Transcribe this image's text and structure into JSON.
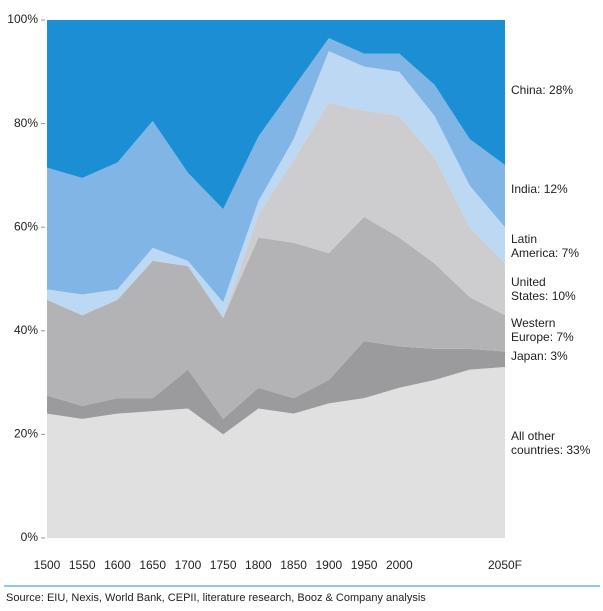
{
  "chart_data": {
    "type": "stacked-area",
    "categories": [
      "1500",
      "1550",
      "1600",
      "1650",
      "1700",
      "1750",
      "1800",
      "1850",
      "1900",
      "1950",
      "2000",
      null,
      null,
      "2050F"
    ],
    "series": [
      {
        "name": "All other countries: 33%",
        "color": "#e0e0e1",
        "values": [
          24,
          23,
          24,
          24.5,
          25,
          20,
          25,
          24,
          26,
          27,
          29,
          30.5,
          32.5,
          33
        ]
      },
      {
        "name": "Japan: 3%",
        "color": "#9b9b9d",
        "values": [
          3.5,
          2.5,
          3,
          2.5,
          7.5,
          3,
          4,
          3,
          4.5,
          11,
          8,
          6,
          4,
          3
        ]
      },
      {
        "name": "Western Europe: 7%",
        "color": "#b3b3b5",
        "values": [
          18.5,
          17.5,
          19,
          26.5,
          20,
          19.5,
          29,
          30,
          24.5,
          24,
          21,
          16.5,
          10,
          7
        ]
      },
      {
        "name": "United States: 10%",
        "color": "#cdcdcf",
        "values": [
          0,
          0,
          0,
          0,
          0,
          0,
          4.5,
          16,
          29,
          20.5,
          23.5,
          20.5,
          13.5,
          10
        ]
      },
      {
        "name": "Latin America: 7%",
        "color": "#bdd8f2",
        "values": [
          2,
          4,
          2,
          2.5,
          1,
          3,
          2.5,
          4,
          10,
          8.5,
          8.5,
          8,
          8,
          7
        ]
      },
      {
        "name": "India: 12%",
        "color": "#80b5e6",
        "values": [
          23.5,
          22.5,
          24.5,
          24.5,
          17,
          18,
          12.5,
          10,
          2.5,
          2.5,
          3.5,
          6,
          9,
          12
        ]
      },
      {
        "name": "China: 28%",
        "color": "#1c8fd4",
        "values": [
          28.5,
          30.5,
          27.5,
          19.5,
          29.5,
          36.5,
          22.5,
          13,
          3.5,
          6.5,
          6.5,
          12.5,
          23,
          28
        ]
      }
    ],
    "ylim": [
      0,
      100
    ],
    "yticks": [
      {
        "value": 0,
        "label": "0%"
      },
      {
        "value": 20,
        "label": "20%"
      },
      {
        "value": 40,
        "label": "40%"
      },
      {
        "value": 60,
        "label": "60%"
      },
      {
        "value": 80,
        "label": "80%"
      },
      {
        "value": 100,
        "label": "100%"
      }
    ],
    "source": "Source: EIU, Nexis,  World Bank, CEPII, literature research, Booz & Company analysis"
  }
}
